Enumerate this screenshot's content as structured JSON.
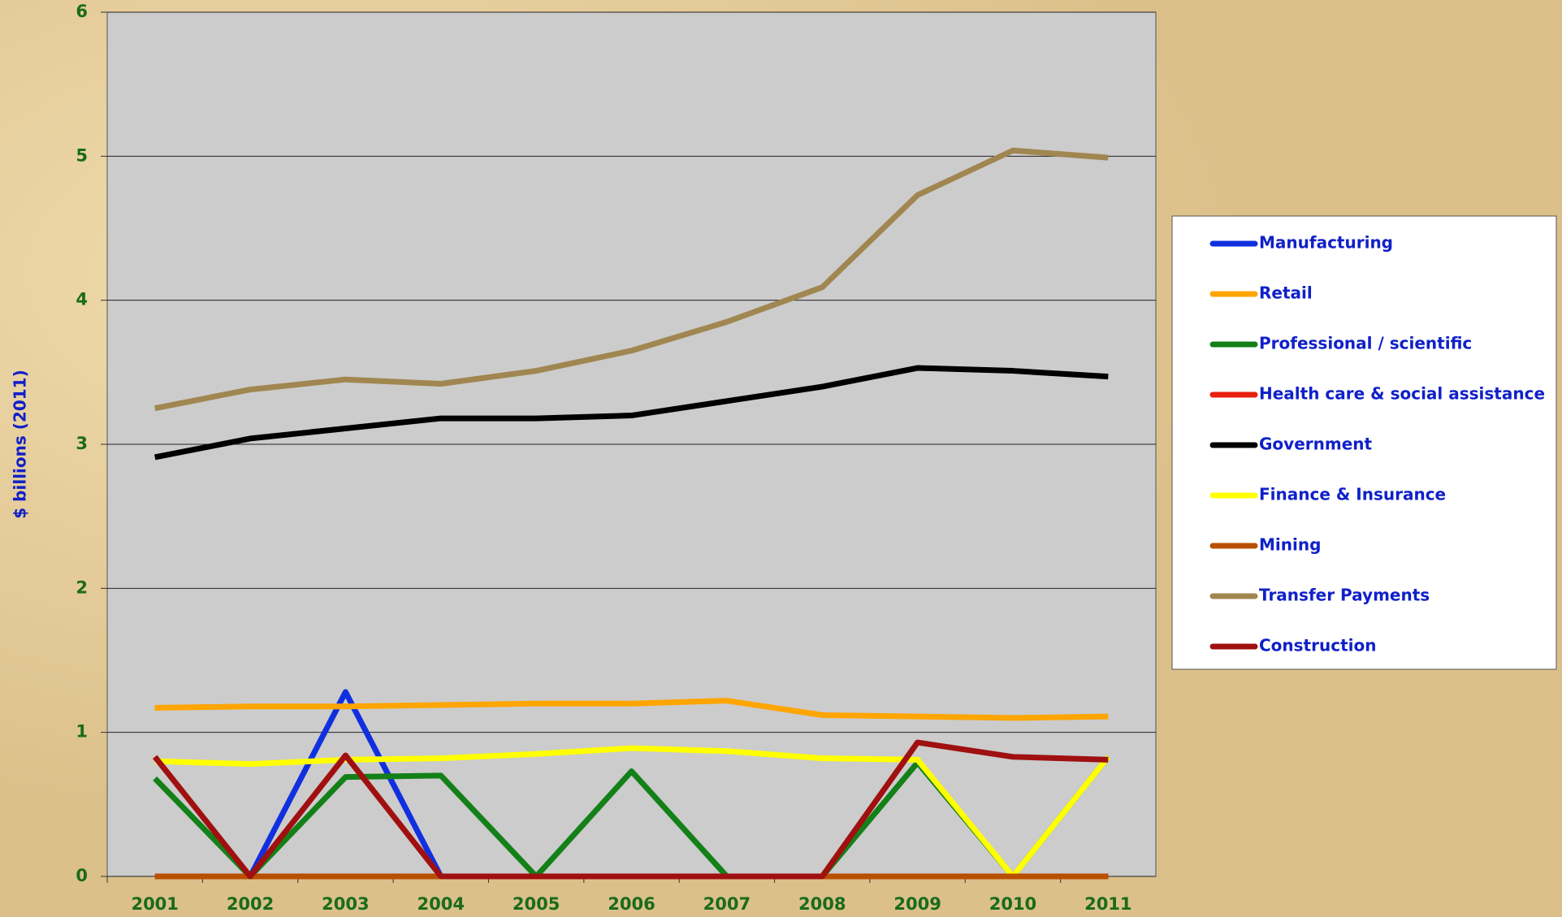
{
  "chart_data": {
    "type": "line",
    "y_label": "$ billions (2011)",
    "categories": [
      "2001",
      "2002",
      "2003",
      "2004",
      "2005",
      "2006",
      "2007",
      "2008",
      "2009",
      "2010",
      "2011"
    ],
    "ylim": [
      0,
      6
    ],
    "yticks": [
      0,
      1,
      2,
      3,
      4,
      5,
      6
    ],
    "grid": true,
    "legend": "right",
    "series": [
      {
        "name": "Manufacturing",
        "color": "#1030e0",
        "values": [
          null,
          0,
          1.28,
          0,
          0,
          0,
          0,
          0,
          0,
          0,
          0
        ]
      },
      {
        "name": "Retail",
        "color": "#ffa500",
        "values": [
          1.17,
          1.18,
          1.18,
          1.19,
          1.2,
          1.2,
          1.22,
          1.12,
          1.11,
          1.1,
          1.11
        ]
      },
      {
        "name": "Professional / scientific",
        "color": "#138018",
        "values": [
          0.68,
          0,
          0.69,
          0.7,
          0,
          0.73,
          0,
          0,
          0.79,
          0,
          0.83
        ]
      },
      {
        "name": "Health care & social assistance",
        "color": "#e82010",
        "values": [
          0,
          0,
          0,
          0,
          0,
          0,
          0,
          0,
          0,
          0,
          0
        ]
      },
      {
        "name": "Government",
        "color": "#000000",
        "values": [
          2.91,
          3.04,
          3.11,
          3.18,
          3.18,
          3.2,
          3.3,
          3.4,
          3.53,
          3.51,
          3.47
        ]
      },
      {
        "name": "Finance & Insurance",
        "color": "#ffff00",
        "values": [
          0.8,
          0.78,
          0.81,
          0.82,
          0.85,
          0.89,
          0.87,
          0.82,
          0.81,
          0,
          0.83
        ]
      },
      {
        "name": "Mining",
        "color": "#b85000",
        "values": [
          0,
          0,
          0,
          0,
          0,
          0,
          0,
          0,
          0,
          0,
          0
        ]
      },
      {
        "name": "Transfer Payments",
        "color": "#a08650",
        "values": [
          3.25,
          3.38,
          3.45,
          3.42,
          3.51,
          3.65,
          3.85,
          4.09,
          4.73,
          5.04,
          4.99
        ]
      },
      {
        "name": "Construction",
        "color": "#a01010",
        "values": [
          0.83,
          0,
          0.84,
          0,
          0,
          0,
          0,
          0,
          0.93,
          0.83,
          0.81
        ]
      }
    ]
  }
}
